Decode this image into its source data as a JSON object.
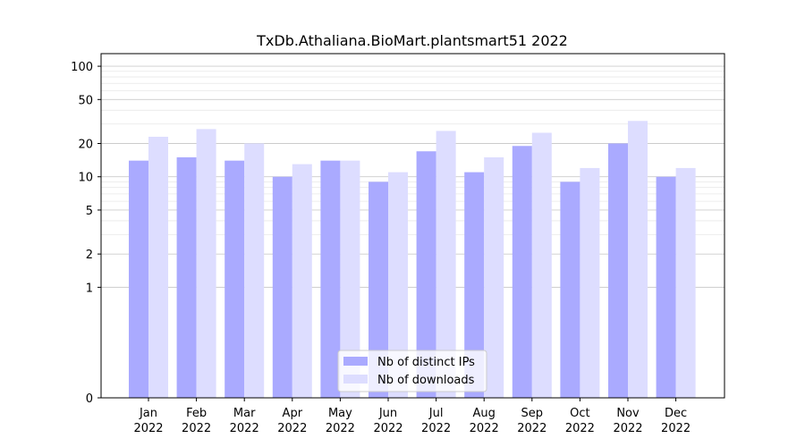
{
  "chart_data": {
    "type": "bar",
    "title": "TxDb.Athaliana.BioMart.plantsmart51 2022",
    "xlabel": "",
    "ylabel": "",
    "y_scale": "symlog",
    "ylim": [
      0,
      130
    ],
    "yticks": [
      0,
      1,
      2,
      5,
      10,
      20,
      50,
      100
    ],
    "ytick_labels": [
      "0",
      "1",
      "2",
      "5",
      "10",
      "20",
      "50",
      "100"
    ],
    "grid": true,
    "legend_placement": "bottom-center",
    "categories": [
      [
        "Jan",
        "2022"
      ],
      [
        "Feb",
        "2022"
      ],
      [
        "Mar",
        "2022"
      ],
      [
        "Apr",
        "2022"
      ],
      [
        "May",
        "2022"
      ],
      [
        "Jun",
        "2022"
      ],
      [
        "Jul",
        "2022"
      ],
      [
        "Aug",
        "2022"
      ],
      [
        "Sep",
        "2022"
      ],
      [
        "Oct",
        "2022"
      ],
      [
        "Nov",
        "2022"
      ],
      [
        "Dec",
        "2022"
      ]
    ],
    "series": [
      {
        "name": "Nb of distinct IPs",
        "color": "#aaaaff",
        "values": [
          14,
          15,
          14,
          10,
          14,
          9,
          17,
          11,
          19,
          9,
          20,
          10
        ]
      },
      {
        "name": "Nb of downloads",
        "color": "#ddddff",
        "values": [
          23,
          27,
          20,
          13,
          14,
          11,
          26,
          15,
          25,
          12,
          32,
          12
        ]
      }
    ]
  }
}
